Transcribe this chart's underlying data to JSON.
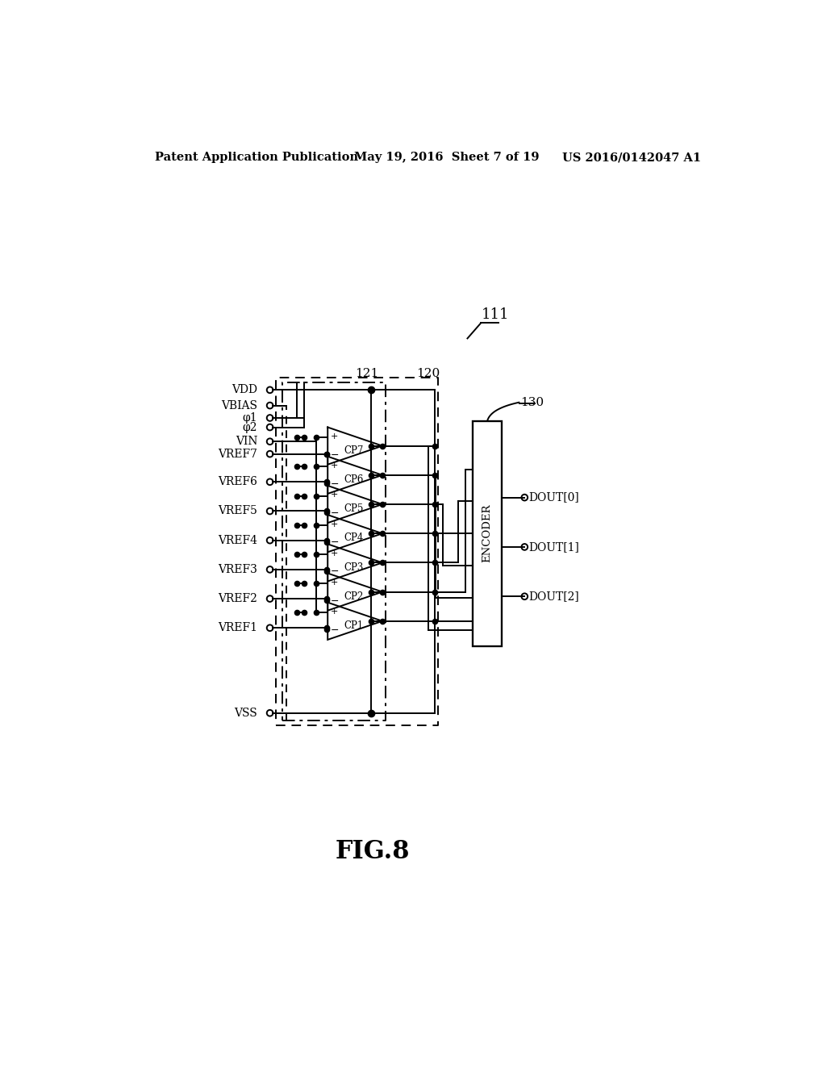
{
  "header_left": "Patent Application Publication",
  "header_center": "May 19, 2016  Sheet 7 of 19",
  "header_right": "US 2016/0142047 A1",
  "fig_label": "FIG.8",
  "label_111": "111",
  "label_120": "120",
  "label_121": "121",
  "label_130": "130",
  "input_labels": [
    "VDD",
    "VBIAS",
    "φ1",
    "φ2",
    "VIN",
    "VREF7",
    "VREF6",
    "VREF5",
    "VREF4",
    "VREF3",
    "VREF2",
    "VREF1",
    "VSS"
  ],
  "comparator_labels": [
    "CP7",
    "CP6",
    "CP5",
    "CP4",
    "CP3",
    "CP2",
    "CP1"
  ],
  "output_labels": [
    "DOUT[2]",
    "DOUT[1]",
    "DOUT[0]"
  ],
  "encoder_label": "ENCODER",
  "background": "#ffffff",
  "line_color": "#000000",
  "lw": 1.4
}
